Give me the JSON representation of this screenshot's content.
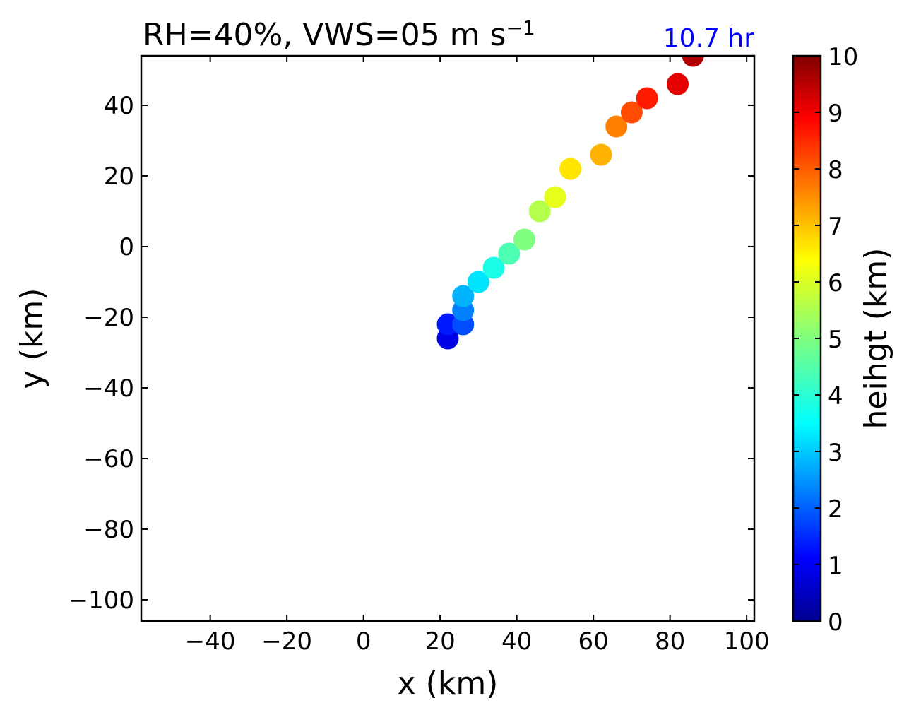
{
  "chart_data": {
    "type": "scatter",
    "title": {
      "main": "RH=40%, VWS=05 m s",
      "superscript": "−1"
    },
    "time_label": "10.7 hr",
    "time_label_color": "#0000ff",
    "xlabel": "x (km)",
    "ylabel": "y (km)",
    "xlim": [
      -58,
      102
    ],
    "ylim": [
      -106,
      54
    ],
    "xticks": [
      -40,
      -20,
      0,
      20,
      40,
      60,
      80,
      100
    ],
    "xtick_labels": [
      "−40",
      "−20",
      "0",
      "20",
      "40",
      "60",
      "80",
      "100"
    ],
    "yticks": [
      40,
      20,
      0,
      -20,
      -40,
      -60,
      -80,
      -100
    ],
    "ytick_labels": [
      "40",
      "20",
      "0",
      "−20",
      "−40",
      "−60",
      "−80",
      "−100"
    ],
    "colorbar": {
      "label": "heihgt (km)",
      "range": [
        0,
        10
      ],
      "ticks": [
        0,
        1,
        2,
        3,
        4,
        5,
        6,
        7,
        8,
        9,
        10
      ],
      "tick_labels": [
        "0",
        "1",
        "2",
        "3",
        "4",
        "5",
        "6",
        "7",
        "8",
        "9",
        "10"
      ],
      "colormap": "jet"
    },
    "points": [
      {
        "x": 22,
        "y": -26,
        "height": 1.0
      },
      {
        "x": 22,
        "y": -22,
        "height": 1.5
      },
      {
        "x": 26,
        "y": -22,
        "height": 2.0
      },
      {
        "x": 26,
        "y": -18,
        "height": 2.5
      },
      {
        "x": 26,
        "y": -14,
        "height": 3.0
      },
      {
        "x": 30,
        "y": -10,
        "height": 3.5
      },
      {
        "x": 34,
        "y": -6,
        "height": 4.0
      },
      {
        "x": 38,
        "y": -2,
        "height": 4.5
      },
      {
        "x": 42,
        "y": 2,
        "height": 5.0
      },
      {
        "x": 46,
        "y": 10,
        "height": 5.5
      },
      {
        "x": 50,
        "y": 14,
        "height": 6.0
      },
      {
        "x": 54,
        "y": 22,
        "height": 6.5
      },
      {
        "x": 62,
        "y": 26,
        "height": 7.0
      },
      {
        "x": 66,
        "y": 34,
        "height": 7.5
      },
      {
        "x": 70,
        "y": 38,
        "height": 8.0
      },
      {
        "x": 74,
        "y": 42,
        "height": 8.5
      },
      {
        "x": 82,
        "y": 46,
        "height": 9.0
      },
      {
        "x": 86,
        "y": 54,
        "height": 9.5
      }
    ]
  }
}
